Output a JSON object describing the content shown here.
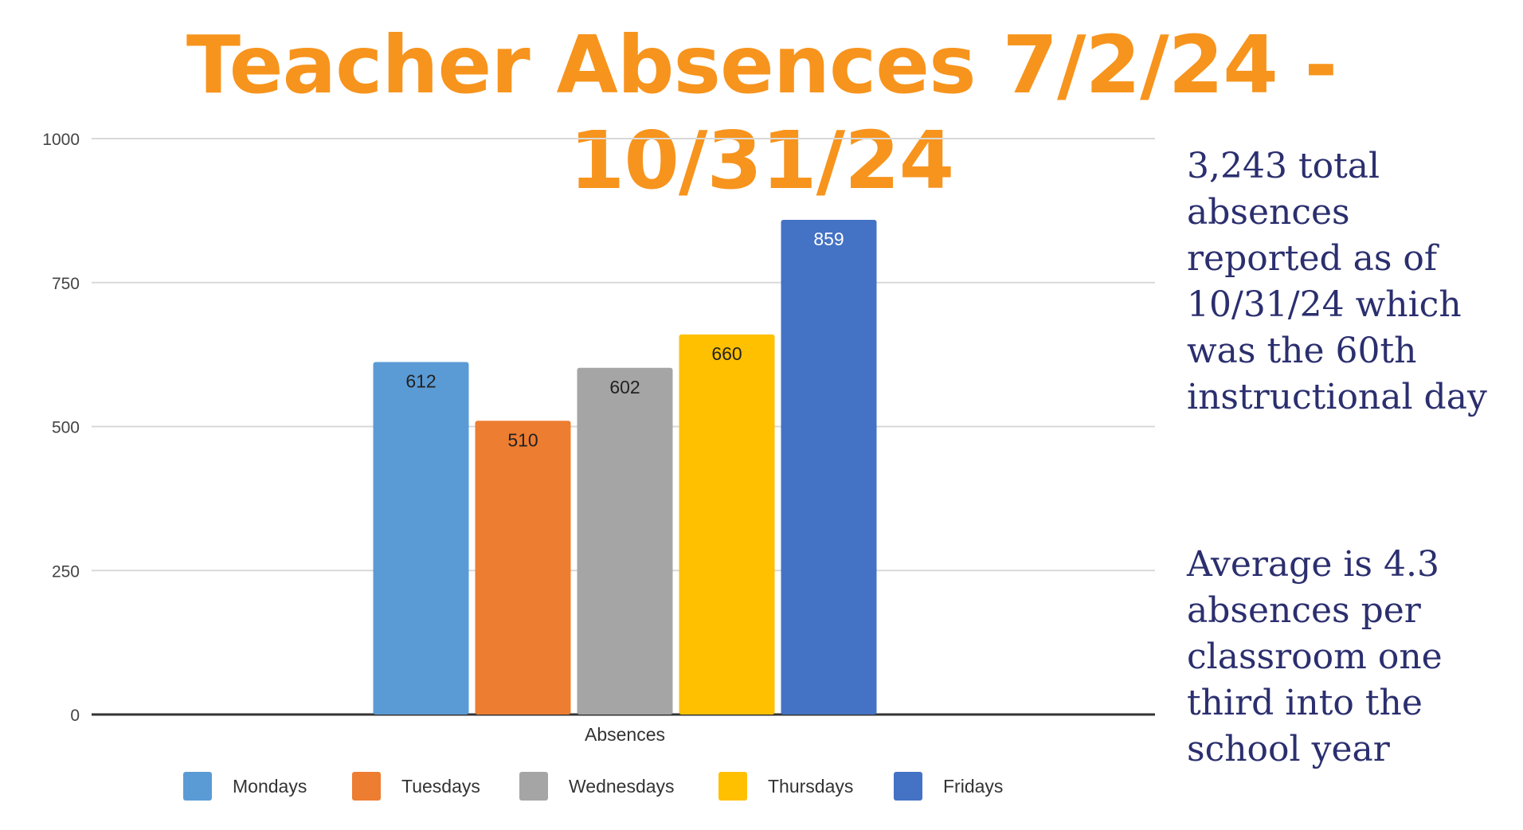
{
  "title": "Teacher Absences 7/2/24 - 10/31/24",
  "notes": {
    "total": "3,243 total absences reported as of 10/31/24 which was the 60th instructional day",
    "average": "Average is 4.3 absences per classroom one third into the school year"
  },
  "colors": {
    "title": "#F7941D",
    "note_text": "#2B2F6E",
    "grid": "#D9D9D9",
    "axis": "#333333",
    "tick_text": "#444444"
  },
  "chart_data": {
    "type": "bar",
    "categories": [
      "Absences"
    ],
    "xlabel": "Absences",
    "ylabel": "",
    "ylim": [
      0,
      1000
    ],
    "yticks": [
      0,
      250,
      500,
      750,
      1000
    ],
    "grid": true,
    "legend_position": "bottom",
    "series": [
      {
        "name": "Mondays",
        "values": [
          612
        ],
        "color": "#5B9BD5",
        "label_color": "#222222"
      },
      {
        "name": "Tuesdays",
        "values": [
          510
        ],
        "color": "#ED7D31",
        "label_color": "#222222"
      },
      {
        "name": "Wednesdays",
        "values": [
          602
        ],
        "color": "#A5A5A5",
        "label_color": "#222222"
      },
      {
        "name": "Thursdays",
        "values": [
          660
        ],
        "color": "#FFC000",
        "label_color": "#222222"
      },
      {
        "name": "Fridays",
        "values": [
          859
        ],
        "color": "#4472C4",
        "label_color": "#ffffff"
      }
    ]
  }
}
